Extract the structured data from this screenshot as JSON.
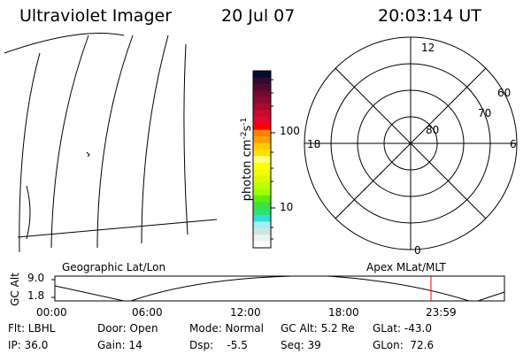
{
  "header": {
    "instrument": "Ultraviolet Imager",
    "date": "20 Jul 07",
    "time": "20:03:14 UT"
  },
  "colorbar": {
    "unit_label": "photon cm",
    "unit_sup1": "-2",
    "unit_mid": "s",
    "unit_sup2": "-1",
    "tick_labels": [
      "100",
      "10"
    ],
    "colors": [
      "#0a0a30",
      "#300a30",
      "#500a30",
      "#700a30",
      "#8c0a30",
      "#a80a30",
      "#c80a30",
      "#e00a30",
      "#ff0000",
      "#ff8000",
      "#ffa000",
      "#ffc800",
      "#ffe000",
      "#ffff80",
      "#ffff00",
      "#f0ff00",
      "#e0f800",
      "#c0ff00",
      "#a0ff00",
      "#60f000",
      "#40e040",
      "#30e070",
      "#30e0d0",
      "#a0f0f8",
      "#d0e4e4",
      "#e8f4ec",
      "#ffffff"
    ]
  },
  "polar": {
    "labels": {
      "top": "12",
      "left": "18",
      "right": "6",
      "bottom": "0"
    },
    "lat_labels": [
      "60",
      "70",
      "80"
    ]
  },
  "timeline": {
    "left_title": "Geographic Lat/Lon",
    "right_title": "Apex MLat/MLT",
    "ylabel": "GC Alt",
    "y_ticks": [
      "9.0",
      "1.8"
    ],
    "x_ticks": [
      "00:00",
      "06:00",
      "12:00",
      "18:00",
      "23:59"
    ],
    "marker_color": "#ff0000"
  },
  "status": {
    "row1": [
      "Flt: LBHL",
      "Door: Open",
      "Mode: Normal",
      "GC Alt: 5.2 Re",
      "GLat: -43.0"
    ],
    "row2": [
      "IP: 36.0",
      "Gain: 14",
      "Dsp:    -5.5",
      "Seq: 39",
      "GLon:  72.6"
    ]
  }
}
